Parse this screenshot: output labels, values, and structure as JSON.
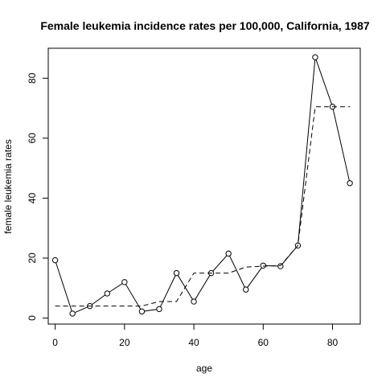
{
  "chart_data": {
    "type": "line",
    "title": "Female leukemia incidence rates per 100,000, California, 1987",
    "xlabel": "age",
    "ylabel": "female leukemia rates",
    "xlim": [
      -2,
      88
    ],
    "ylim": [
      -2,
      90
    ],
    "x_ticks": [
      0,
      20,
      40,
      60,
      80
    ],
    "y_ticks": [
      0,
      20,
      40,
      60,
      80
    ],
    "grid": false,
    "series": [
      {
        "style": "solid-with-circles",
        "x": [
          0,
          5,
          10,
          15,
          20,
          25,
          30,
          35,
          40,
          45,
          50,
          55,
          60,
          65,
          70,
          75,
          80,
          85
        ],
        "y": [
          19.3,
          1.5,
          4.0,
          8.2,
          12.0,
          2.2,
          3.0,
          15.0,
          5.5,
          15.0,
          21.5,
          9.5,
          17.5,
          17.3,
          24.2,
          87.0,
          70.5,
          45.0
        ]
      },
      {
        "style": "dashed-step",
        "x": [
          0,
          5,
          10,
          15,
          20,
          25,
          30,
          35,
          40,
          45,
          50,
          55,
          60,
          65,
          70,
          75,
          80,
          85
        ],
        "y": [
          4.0,
          4.0,
          4.0,
          4.0,
          4.0,
          4.0,
          5.5,
          5.5,
          15.0,
          15.0,
          15.0,
          17.0,
          17.3,
          17.5,
          24.2,
          70.5,
          70.5,
          70.5
        ]
      }
    ]
  }
}
